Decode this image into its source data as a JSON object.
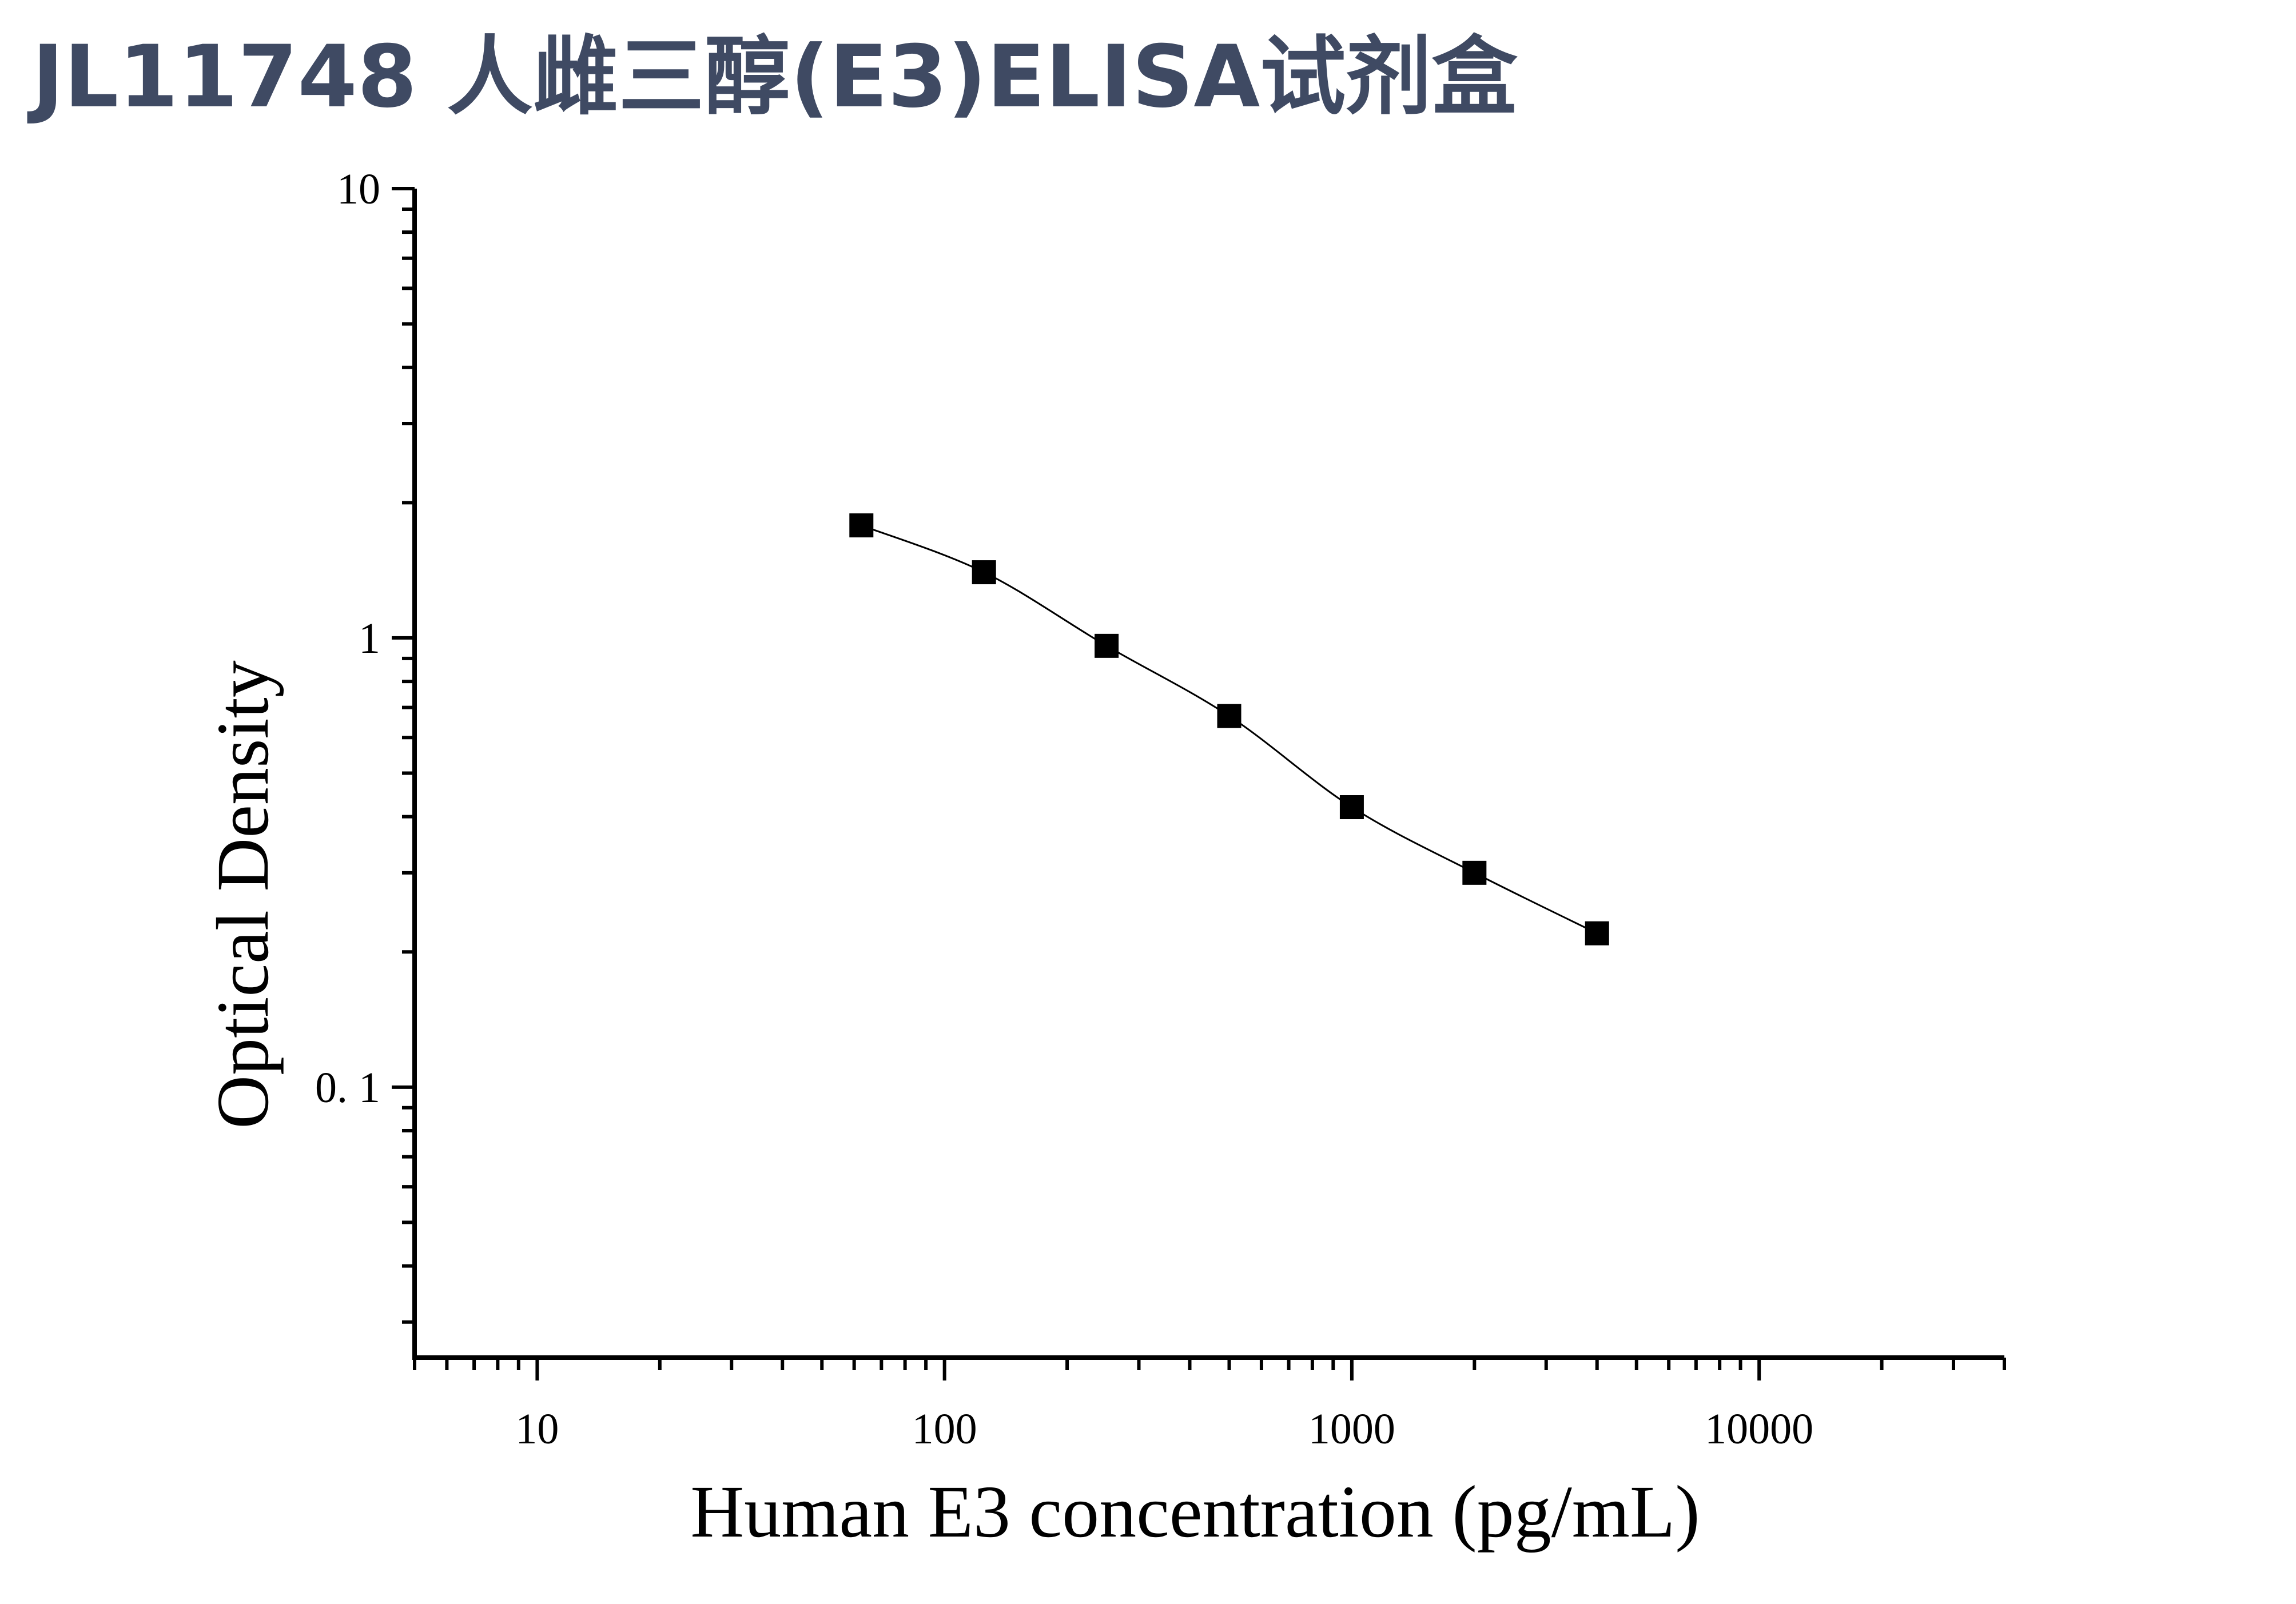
{
  "title": "JL11748 人雌三醇(E3)ELISA试剂盒",
  "chart_data": {
    "type": "scatter",
    "title": "JL11748 人雌三醇(E3)ELISA试剂盒",
    "xlabel": "Human E3 concentration (pg/mL)",
    "ylabel": "Optical Density",
    "xscale": "log",
    "yscale": "log",
    "xlim": [
      5,
      40000
    ],
    "ylim": [
      0.025,
      10
    ],
    "xticks": [
      "10",
      "100",
      "1000",
      "10000"
    ],
    "yticks": [
      "10",
      "1",
      "0. 1"
    ],
    "grid": false,
    "legend": "none",
    "series": [
      {
        "marker": "square",
        "fit_curve": true,
        "x": [
          62.5,
          125,
          250,
          500,
          1000,
          2000,
          4000
        ],
        "y": [
          1.78,
          1.4,
          0.96,
          0.67,
          0.42,
          0.3,
          0.22
        ]
      }
    ],
    "colors": {
      "axis": "#000000",
      "marker": "#000000",
      "curve": "#000000",
      "title": "#3f4a63"
    }
  }
}
